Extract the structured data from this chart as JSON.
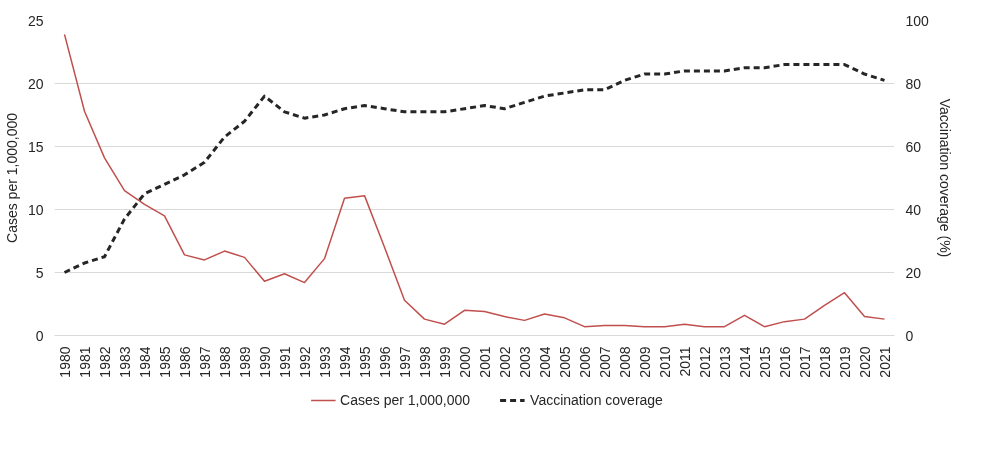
{
  "chart_data": {
    "type": "line",
    "categories": [
      "1980",
      "1981",
      "1982",
      "1983",
      "1984",
      "1985",
      "1986",
      "1987",
      "1988",
      "1989",
      "1990",
      "1991",
      "1992",
      "1993",
      "1994",
      "1995",
      "1996",
      "1997",
      "1998",
      "1999",
      "2000",
      "2001",
      "2002",
      "2003",
      "2004",
      "2005",
      "2006",
      "2007",
      "2008",
      "2009",
      "2010",
      "2011",
      "2012",
      "2013",
      "2014",
      "2015",
      "2016",
      "2017",
      "2018",
      "2019",
      "2020",
      "2021"
    ],
    "series": [
      {
        "name": "Cases per 1,000,000",
        "color": "#c0504d",
        "line_style": "solid",
        "values": [
          23.9,
          17.8,
          14.1,
          11.5,
          10.4,
          9.5,
          6.4,
          6.0,
          6.7,
          6.2,
          4.3,
          4.9,
          4.2,
          6.1,
          10.9,
          11.1,
          7.0,
          2.8,
          1.3,
          0.9,
          2.0,
          1.9,
          1.5,
          1.2,
          1.7,
          1.4,
          0.7,
          0.8,
          0.8,
          0.7,
          0.7,
          0.9,
          0.7,
          0.7,
          1.6,
          0.7,
          1.1,
          1.3,
          2.4,
          3.4,
          1.5,
          1.3
        ]
      },
      {
        "name": "Vaccination coverage",
        "color": "#262626",
        "line_style": "dashed",
        "axis": "y2",
        "values": [
          20,
          23,
          25,
          37,
          45,
          48,
          51,
          55,
          63,
          68,
          76,
          71,
          69,
          70,
          72,
          73,
          72,
          71,
          71,
          71,
          72,
          73,
          72,
          74,
          76,
          77,
          78,
          78,
          81,
          83,
          83,
          84,
          84,
          84,
          85,
          85,
          86,
          86,
          86,
          86,
          83,
          81
        ]
      }
    ],
    "ylabel": "Cases per 1,000,000",
    "y2label": "Vaccination coverage (%)",
    "ylim": [
      0,
      25
    ],
    "yticks": [
      0,
      5,
      10,
      15,
      20,
      25
    ],
    "y2lim": [
      0,
      100
    ],
    "y2ticks": [
      0,
      20,
      40,
      60,
      80,
      100
    ],
    "grid": "y",
    "legend": "bottom"
  }
}
